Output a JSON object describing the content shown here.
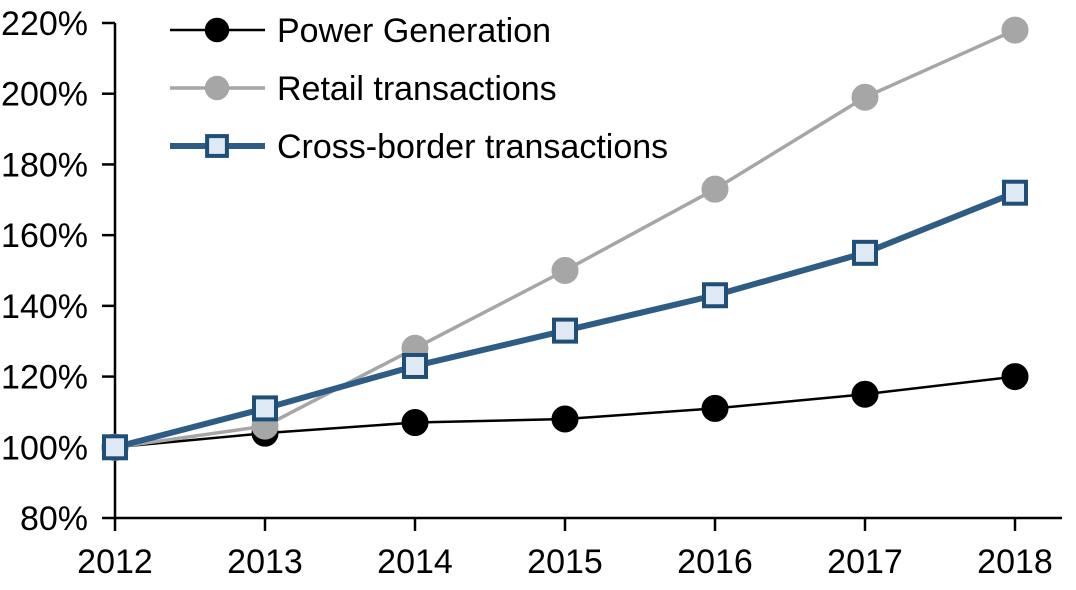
{
  "chart_data": {
    "type": "line",
    "x": [
      2012,
      2013,
      2014,
      2015,
      2016,
      2017,
      2018
    ],
    "series": [
      {
        "name": "Power Generation",
        "values": [
          100,
          104,
          107,
          108,
          111,
          115,
          120
        ],
        "color": "#000000",
        "line_width": 2.5,
        "marker": "circle",
        "marker_fill": "#000000",
        "marker_border": "#000000"
      },
      {
        "name": "Retail transactions",
        "values": [
          100,
          106,
          128,
          150,
          173,
          199,
          218
        ],
        "color": "#A6A6A6",
        "line_width": 3.5,
        "marker": "circle",
        "marker_fill": "#A6A6A6",
        "marker_border": "#A6A6A6"
      },
      {
        "name": "Cross-border transactions",
        "values": [
          100,
          111,
          123,
          133,
          143,
          155,
          172
        ],
        "color": "#2E5C85",
        "line_width": 6,
        "marker": "square",
        "marker_fill": "#DEE9F4",
        "marker_border": "#1F4E79"
      }
    ],
    "title": "",
    "xlabel": "",
    "ylabel": "",
    "ylim": [
      80,
      220
    ],
    "ytick_step": 20,
    "ytick_format": "percent",
    "grid": false,
    "legend_position": "top-left"
  },
  "axis": {
    "y_labels": [
      "80%",
      "100%",
      "120%",
      "140%",
      "160%",
      "180%",
      "200%",
      "220%"
    ],
    "x_labels": [
      "2012",
      "2013",
      "2014",
      "2015",
      "2016",
      "2017",
      "2018"
    ]
  },
  "colors": {
    "axis": "#000000",
    "background": "#FFFFFF",
    "text": "#000000"
  }
}
